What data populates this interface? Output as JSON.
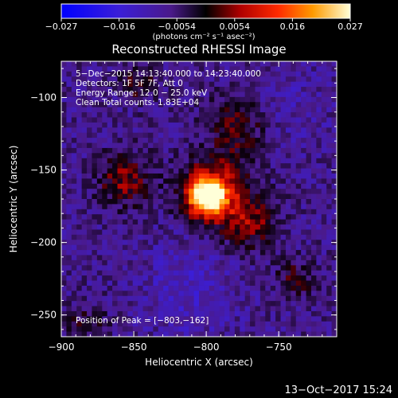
{
  "colorbar": {
    "tick_labels": [
      "−0.027",
      "−0.016",
      "−0.0054",
      "0.0054",
      "0.016",
      "0.027"
    ],
    "unit_label": "(photons cm⁻² s⁻¹ asec⁻²)",
    "min": -0.027,
    "max": 0.027
  },
  "plot": {
    "title": "Reconstructed RHESSI Image",
    "xlabel": "Heliocentric X (arcsec)",
    "ylabel": "Heliocentric Y (arcsec)",
    "xlim": [
      -900,
      -710
    ],
    "ylim": [
      -265,
      -75
    ],
    "x_ticks": [
      {
        "value": -900,
        "label": "−900"
      },
      {
        "value": -850,
        "label": "−850"
      },
      {
        "value": -800,
        "label": "−800"
      },
      {
        "value": -750,
        "label": "−750"
      }
    ],
    "y_ticks": [
      {
        "value": -100,
        "label": "−100"
      },
      {
        "value": -150,
        "label": "−150"
      },
      {
        "value": -200,
        "label": "−200"
      },
      {
        "value": -250,
        "label": "−250"
      }
    ],
    "info_lines": [
      "5−Dec−2015 14:13:40.000 to 14:23:40.000",
      "Detectors: 1F 5F 7F, Att 0",
      "Energy Range: 12.0 − 25.0 keV",
      "Clean     Total counts: 1.83E+04"
    ],
    "peak_label": "Position of Peak = [−803,−162]",
    "peak": {
      "x": -803,
      "y": -162
    }
  },
  "footer": {
    "timestamp": "13−Oct−2017 15:24"
  },
  "colors": {
    "background": "#000000",
    "text": "#ffffff"
  }
}
